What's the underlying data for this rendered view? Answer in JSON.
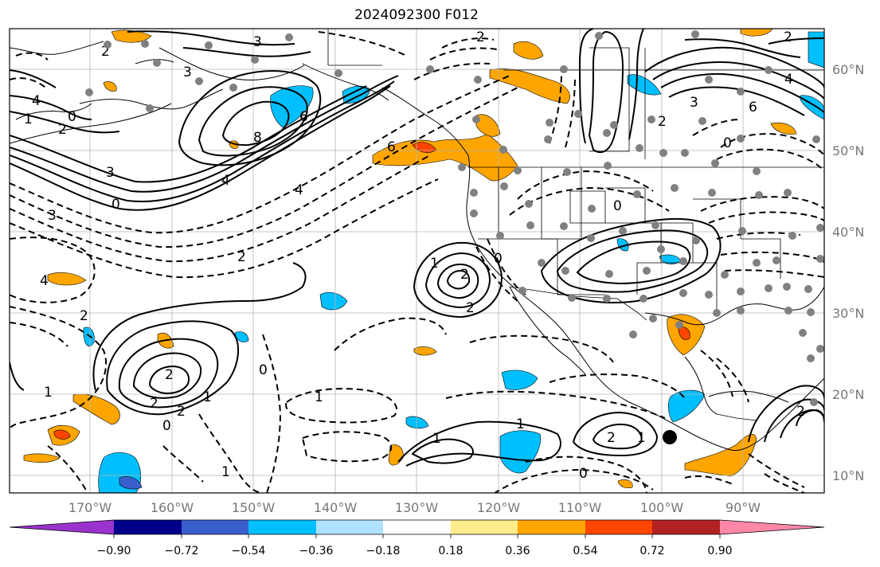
{
  "title": "2024092300 F012",
  "lon_labels": [
    "170°W",
    "160°W",
    "150°W",
    "140°W",
    "130°W",
    "120°W",
    "110°W",
    "100°W",
    "90°W"
  ],
  "lat_labels": [
    "60°N",
    "50°N",
    "40°N",
    "30°N",
    "20°N",
    "10°N"
  ],
  "colorbar": {
    "colors": [
      "#9a32cd",
      "#00008b",
      "#3a5fcd",
      "#00bfff",
      "#b0e2ff",
      "#ffffff",
      "#ffec8b",
      "#ffa500",
      "#ff4500",
      "#b22222",
      "#ff88a9"
    ],
    "tick_labels": [
      "−0.90",
      "−0.72",
      "−0.54",
      "−0.36",
      "−0.18",
      "0.18",
      "0.36",
      "0.54",
      "0.72",
      "0.90"
    ]
  },
  "contour_labels": {
    "solid": [
      "3",
      "2",
      "0",
      "1",
      "2",
      "3",
      "4",
      "6",
      "8",
      "6",
      "4",
      "3",
      "2",
      "2",
      "2",
      "1",
      "2",
      "0",
      "4",
      "6",
      "2",
      "2",
      "1",
      "2",
      "1",
      "0",
      "2",
      "1",
      "3",
      "2"
    ],
    "dashed": [
      "2",
      "1",
      "0",
      "3",
      "4",
      "0",
      "4",
      "2",
      "1",
      "0",
      "1",
      "0",
      "1",
      "0",
      "2"
    ]
  }
}
